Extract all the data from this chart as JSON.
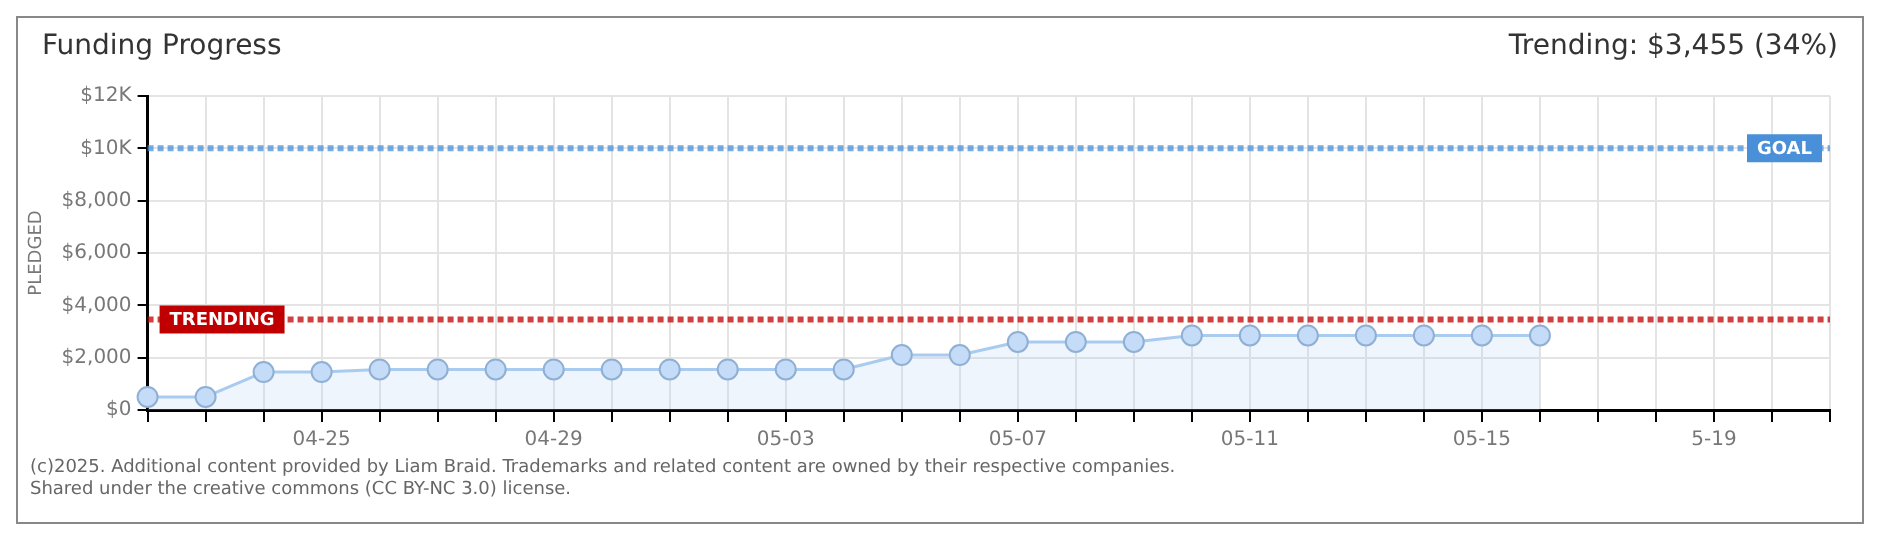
{
  "chart_data": {
    "type": "area",
    "title": "Funding Progress",
    "subtitle": "Trending: $3,455 (34%)",
    "ylabel": "PLEDGED",
    "categories": [
      null,
      null,
      null,
      "04-25",
      null,
      null,
      null,
      "04-29",
      null,
      null,
      null,
      "05-03",
      null,
      null,
      null,
      "05-07",
      null,
      null,
      null,
      "05-11",
      null,
      null,
      null,
      "05-15",
      null,
      null,
      null,
      "5-19",
      null,
      null
    ],
    "series": [
      {
        "color": "#a9cbef",
        "values": [
          500,
          500,
          1450,
          1450,
          1550,
          1550,
          1550,
          1550,
          1550,
          1550,
          1550,
          1550,
          1550,
          2100,
          2100,
          2600,
          2600,
          2600,
          2850,
          2850,
          2850,
          2850,
          2850,
          2850,
          2850,
          null,
          null,
          null,
          null,
          null
        ]
      }
    ],
    "ylim": [
      0,
      12000
    ],
    "yticks": [
      {
        "value": 0,
        "label": "$0"
      },
      {
        "value": 2000,
        "label": "$2,000"
      },
      {
        "value": 4000,
        "label": "$4,000"
      },
      {
        "value": 6000,
        "label": "$6,000"
      },
      {
        "value": 8000,
        "label": "$8,000"
      },
      {
        "value": 10000,
        "label": "$10K"
      },
      {
        "value": 12000,
        "label": "$12K"
      }
    ],
    "ref_lines": [
      {
        "axis": "y",
        "value": 10000,
        "label": "GOAL",
        "color": "#4a90d9",
        "line_style": "dotted"
      },
      {
        "axis": "y",
        "value": 3455,
        "label": "TRENDING",
        "color": "#c00000",
        "line_style": "dotted"
      }
    ],
    "grid": true,
    "legend": false,
    "marker": "circle",
    "annotations": [
      "(c)2025. Additional content provided by Liam Braid. Trademarks and related content are owned by their respective companies.",
      "Shared under the creative commons (CC BY-NC 3.0) license."
    ]
  }
}
